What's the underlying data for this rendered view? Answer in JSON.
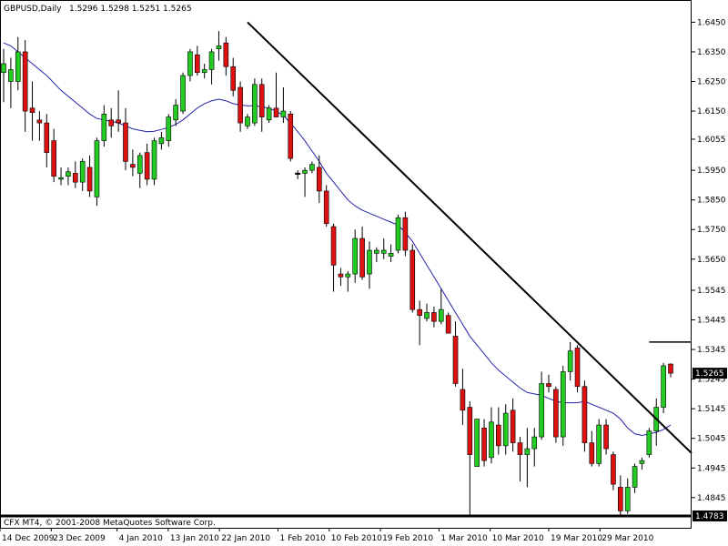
{
  "header": {
    "symbol": "GBPUSD,Daily",
    "ohlc": "1.5296 1.5298 1.5251 1.5265"
  },
  "footer": {
    "copyright": "CFX MT4, © 2001-2008 MetaQuotes Software Corp."
  },
  "chart_data": {
    "type": "candlestick",
    "instrument": "GBPUSD",
    "timeframe": "Daily",
    "ylim": [
      1.4743,
      1.6525
    ],
    "y_ticks": [
      "1.6450",
      "1.6350",
      "1.6250",
      "1.6150",
      "1.6055",
      "1.5950",
      "1.5850",
      "1.5750",
      "1.5650",
      "1.5545",
      "1.5445",
      "1.5345",
      "1.5245",
      "1.5145",
      "1.5045",
      "1.4945",
      "1.4845"
    ],
    "x_ticks": [
      "14 Dec 2009",
      "23 Dec 2009",
      "4 Jan 2010",
      "13 Jan 2010",
      "22 Jan 2010",
      "1 Feb 2010",
      "10 Feb 2010",
      "19 Feb 2010",
      "1 Mar 2010",
      "10 Mar 2010",
      "19 Mar 2010",
      "29 Mar 2010"
    ],
    "current_price": "1.5265",
    "support_label": "1.4783",
    "candles": [
      {
        "o": 1.628,
        "h": 1.636,
        "l": 1.618,
        "c": 1.631
      },
      {
        "o": 1.625,
        "h": 1.633,
        "l": 1.616,
        "c": 1.629
      },
      {
        "o": 1.625,
        "h": 1.64,
        "l": 1.622,
        "c": 1.635
      },
      {
        "o": 1.635,
        "h": 1.639,
        "l": 1.608,
        "c": 1.615
      },
      {
        "o": 1.616,
        "h": 1.625,
        "l": 1.605,
        "c": 1.6145
      },
      {
        "o": 1.612,
        "h": 1.615,
        "l": 1.605,
        "c": 1.611
      },
      {
        "o": 1.611,
        "h": 1.614,
        "l": 1.596,
        "c": 1.601
      },
      {
        "o": 1.605,
        "h": 1.609,
        "l": 1.591,
        "c": 1.593
      },
      {
        "o": 1.592,
        "h": 1.596,
        "l": 1.59,
        "c": 1.5925
      },
      {
        "o": 1.593,
        "h": 1.596,
        "l": 1.59,
        "c": 1.5945
      },
      {
        "o": 1.594,
        "h": 1.598,
        "l": 1.589,
        "c": 1.591
      },
      {
        "o": 1.591,
        "h": 1.599,
        "l": 1.588,
        "c": 1.598
      },
      {
        "o": 1.596,
        "h": 1.6,
        "l": 1.586,
        "c": 1.588
      },
      {
        "o": 1.586,
        "h": 1.606,
        "l": 1.583,
        "c": 1.605
      },
      {
        "o": 1.605,
        "h": 1.617,
        "l": 1.603,
        "c": 1.614
      },
      {
        "o": 1.612,
        "h": 1.616,
        "l": 1.606,
        "c": 1.61
      },
      {
        "o": 1.612,
        "h": 1.622,
        "l": 1.608,
        "c": 1.611
      },
      {
        "o": 1.611,
        "h": 1.616,
        "l": 1.595,
        "c": 1.598
      },
      {
        "o": 1.597,
        "h": 1.602,
        "l": 1.593,
        "c": 1.596
      },
      {
        "o": 1.594,
        "h": 1.601,
        "l": 1.589,
        "c": 1.6
      },
      {
        "o": 1.601,
        "h": 1.604,
        "l": 1.59,
        "c": 1.592
      },
      {
        "o": 1.592,
        "h": 1.606,
        "l": 1.59,
        "c": 1.605
      },
      {
        "o": 1.604,
        "h": 1.608,
        "l": 1.602,
        "c": 1.606
      },
      {
        "o": 1.605,
        "h": 1.614,
        "l": 1.603,
        "c": 1.613
      },
      {
        "o": 1.612,
        "h": 1.619,
        "l": 1.61,
        "c": 1.617
      },
      {
        "o": 1.615,
        "h": 1.628,
        "l": 1.614,
        "c": 1.627
      },
      {
        "o": 1.627,
        "h": 1.636,
        "l": 1.625,
        "c": 1.635
      },
      {
        "o": 1.634,
        "h": 1.637,
        "l": 1.627,
        "c": 1.628
      },
      {
        "o": 1.628,
        "h": 1.631,
        "l": 1.626,
        "c": 1.629
      },
      {
        "o": 1.629,
        "h": 1.636,
        "l": 1.624,
        "c": 1.635
      },
      {
        "o": 1.636,
        "h": 1.642,
        "l": 1.632,
        "c": 1.637
      },
      {
        "o": 1.638,
        "h": 1.64,
        "l": 1.627,
        "c": 1.63
      },
      {
        "o": 1.63,
        "h": 1.633,
        "l": 1.62,
        "c": 1.622
      },
      {
        "o": 1.623,
        "h": 1.625,
        "l": 1.608,
        "c": 1.611
      },
      {
        "o": 1.61,
        "h": 1.614,
        "l": 1.609,
        "c": 1.613
      },
      {
        "o": 1.611,
        "h": 1.626,
        "l": 1.61,
        "c": 1.624
      },
      {
        "o": 1.624,
        "h": 1.626,
        "l": 1.608,
        "c": 1.613
      },
      {
        "o": 1.612,
        "h": 1.617,
        "l": 1.611,
        "c": 1.616
      },
      {
        "o": 1.616,
        "h": 1.628,
        "l": 1.614,
        "c": 1.613
      },
      {
        "o": 1.613,
        "h": 1.623,
        "l": 1.611,
        "c": 1.615
      },
      {
        "o": 1.614,
        "h": 1.615,
        "l": 1.598,
        "c": 1.599
      },
      {
        "o": 1.594,
        "h": 1.595,
        "l": 1.592,
        "c": 1.594
      },
      {
        "o": 1.594,
        "h": 1.596,
        "l": 1.586,
        "c": 1.595
      },
      {
        "o": 1.595,
        "h": 1.598,
        "l": 1.594,
        "c": 1.597
      },
      {
        "o": 1.596,
        "h": 1.6,
        "l": 1.584,
        "c": 1.588
      },
      {
        "o": 1.588,
        "h": 1.59,
        "l": 1.576,
        "c": 1.577
      },
      {
        "o": 1.576,
        "h": 1.577,
        "l": 1.554,
        "c": 1.563
      },
      {
        "o": 1.56,
        "h": 1.562,
        "l": 1.556,
        "c": 1.559
      },
      {
        "o": 1.559,
        "h": 1.561,
        "l": 1.554,
        "c": 1.56
      },
      {
        "o": 1.56,
        "h": 1.575,
        "l": 1.557,
        "c": 1.572
      },
      {
        "o": 1.572,
        "h": 1.576,
        "l": 1.558,
        "c": 1.559
      },
      {
        "o": 1.56,
        "h": 1.571,
        "l": 1.555,
        "c": 1.568
      },
      {
        "o": 1.567,
        "h": 1.569,
        "l": 1.564,
        "c": 1.568
      },
      {
        "o": 1.567,
        "h": 1.572,
        "l": 1.565,
        "c": 1.568
      },
      {
        "o": 1.566,
        "h": 1.57,
        "l": 1.564,
        "c": 1.567
      },
      {
        "o": 1.568,
        "h": 1.58,
        "l": 1.567,
        "c": 1.579
      },
      {
        "o": 1.579,
        "h": 1.581,
        "l": 1.566,
        "c": 1.568
      },
      {
        "o": 1.568,
        "h": 1.57,
        "l": 1.547,
        "c": 1.548
      },
      {
        "o": 1.548,
        "h": 1.551,
        "l": 1.536,
        "c": 1.546
      },
      {
        "o": 1.545,
        "h": 1.55,
        "l": 1.544,
        "c": 1.547
      },
      {
        "o": 1.547,
        "h": 1.549,
        "l": 1.542,
        "c": 1.544
      },
      {
        "o": 1.544,
        "h": 1.555,
        "l": 1.543,
        "c": 1.548
      },
      {
        "o": 1.546,
        "h": 1.547,
        "l": 1.54,
        "c": 1.54
      },
      {
        "o": 1.539,
        "h": 1.544,
        "l": 1.522,
        "c": 1.523
      },
      {
        "o": 1.521,
        "h": 1.528,
        "l": 1.509,
        "c": 1.514
      },
      {
        "o": 1.515,
        "h": 1.517,
        "l": 1.4783,
        "c": 1.499
      },
      {
        "o": 1.495,
        "h": 1.511,
        "l": 1.495,
        "c": 1.511
      },
      {
        "o": 1.508,
        "h": 1.511,
        "l": 1.495,
        "c": 1.497
      },
      {
        "o": 1.498,
        "h": 1.515,
        "l": 1.496,
        "c": 1.51
      },
      {
        "o": 1.509,
        "h": 1.515,
        "l": 1.499,
        "c": 1.502
      },
      {
        "o": 1.502,
        "h": 1.516,
        "l": 1.499,
        "c": 1.513
      },
      {
        "o": 1.514,
        "h": 1.518,
        "l": 1.5,
        "c": 1.503
      },
      {
        "o": 1.503,
        "h": 1.505,
        "l": 1.49,
        "c": 1.499
      },
      {
        "o": 1.499,
        "h": 1.508,
        "l": 1.488,
        "c": 1.501
      },
      {
        "o": 1.501,
        "h": 1.508,
        "l": 1.495,
        "c": 1.505
      },
      {
        "o": 1.505,
        "h": 1.527,
        "l": 1.504,
        "c": 1.523
      },
      {
        "o": 1.523,
        "h": 1.526,
        "l": 1.52,
        "c": 1.522
      },
      {
        "o": 1.521,
        "h": 1.522,
        "l": 1.503,
        "c": 1.505
      },
      {
        "o": 1.505,
        "h": 1.529,
        "l": 1.502,
        "c": 1.527
      },
      {
        "o": 1.527,
        "h": 1.537,
        "l": 1.524,
        "c": 1.534
      },
      {
        "o": 1.535,
        "h": 1.536,
        "l": 1.52,
        "c": 1.522
      },
      {
        "o": 1.522,
        "h": 1.524,
        "l": 1.5,
        "c": 1.503
      },
      {
        "o": 1.503,
        "h": 1.507,
        "l": 1.495,
        "c": 1.496
      },
      {
        "o": 1.496,
        "h": 1.511,
        "l": 1.495,
        "c": 1.509
      },
      {
        "o": 1.509,
        "h": 1.511,
        "l": 1.499,
        "c": 1.501
      },
      {
        "o": 1.499,
        "h": 1.5,
        "l": 1.487,
        "c": 1.489
      },
      {
        "o": 1.488,
        "h": 1.492,
        "l": 1.478,
        "c": 1.48
      },
      {
        "o": 1.48,
        "h": 1.491,
        "l": 1.479,
        "c": 1.488
      },
      {
        "o": 1.488,
        "h": 1.496,
        "l": 1.486,
        "c": 1.495
      },
      {
        "o": 1.496,
        "h": 1.498,
        "l": 1.494,
        "c": 1.497
      },
      {
        "o": 1.499,
        "h": 1.508,
        "l": 1.498,
        "c": 1.507
      },
      {
        "o": 1.507,
        "h": 1.518,
        "l": 1.502,
        "c": 1.515
      },
      {
        "o": 1.515,
        "h": 1.53,
        "l": 1.513,
        "c": 1.529
      },
      {
        "o": 1.5296,
        "h": 1.5298,
        "l": 1.5251,
        "c": 1.5265
      }
    ],
    "moving_average": [
      1.638,
      1.637,
      1.635,
      1.633,
      1.631,
      1.629,
      1.627,
      1.6245,
      1.622,
      1.62,
      1.618,
      1.616,
      1.614,
      1.6125,
      1.612,
      1.6115,
      1.611,
      1.61,
      1.609,
      1.6085,
      1.608,
      1.6082,
      1.6088,
      1.6095,
      1.6105,
      1.612,
      1.614,
      1.616,
      1.6175,
      1.6185,
      1.619,
      1.6185,
      1.6175,
      1.617,
      1.6168,
      1.6168,
      1.6165,
      1.616,
      1.615,
      1.6135,
      1.611,
      1.608,
      1.605,
      1.6015,
      1.598,
      1.594,
      1.591,
      1.588,
      1.585,
      1.583,
      1.5815,
      1.5805,
      1.5795,
      1.5785,
      1.5775,
      1.5765,
      1.574,
      1.571,
      1.567,
      1.563,
      1.559,
      1.555,
      1.551,
      1.547,
      1.543,
      1.539,
      1.536,
      1.533,
      1.53,
      1.5275,
      1.5255,
      1.5235,
      1.5215,
      1.52,
      1.5195,
      1.519,
      1.518,
      1.517,
      1.5165,
      1.5165,
      1.5165,
      1.517,
      1.516,
      1.515,
      1.514,
      1.513,
      1.511,
      1.508,
      1.506,
      1.5055,
      1.506,
      1.5065,
      1.5075,
      1.509
    ]
  },
  "drawings": {
    "trend_line": {
      "from": {
        "bar": 34,
        "price": 1.645
      },
      "to": {
        "bar": 110,
        "price": 1.4995
      }
    },
    "resistance_line": {
      "from_bar": 90,
      "price": 1.537
    },
    "support_line": {
      "price": 1.4783
    }
  }
}
